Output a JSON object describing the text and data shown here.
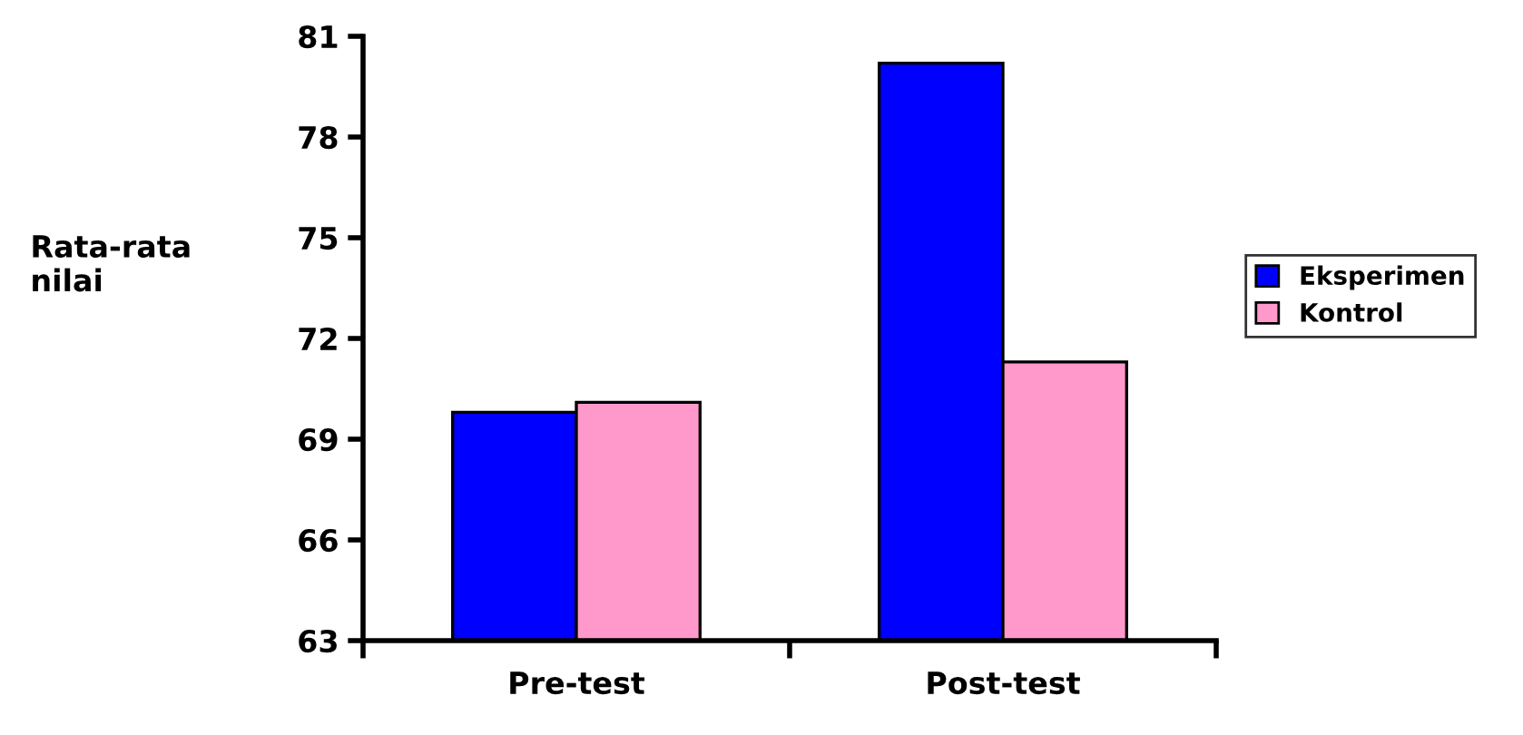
{
  "chart_data": {
    "type": "bar",
    "ylabel": "Rata-rata\nnilai",
    "categories": [
      "Pre-test",
      "Post-test"
    ],
    "series": [
      {
        "name": "Eksperimen",
        "color": "#0000ff",
        "values": [
          69.8,
          80.2
        ]
      },
      {
        "name": "Kontrol",
        "color": "#ff99cc",
        "values": [
          70.1,
          71.3
        ]
      }
    ],
    "ylim": [
      63,
      81
    ],
    "yticks": [
      63,
      66,
      69,
      72,
      75,
      78,
      81
    ],
    "grid": false,
    "legend": "right"
  }
}
